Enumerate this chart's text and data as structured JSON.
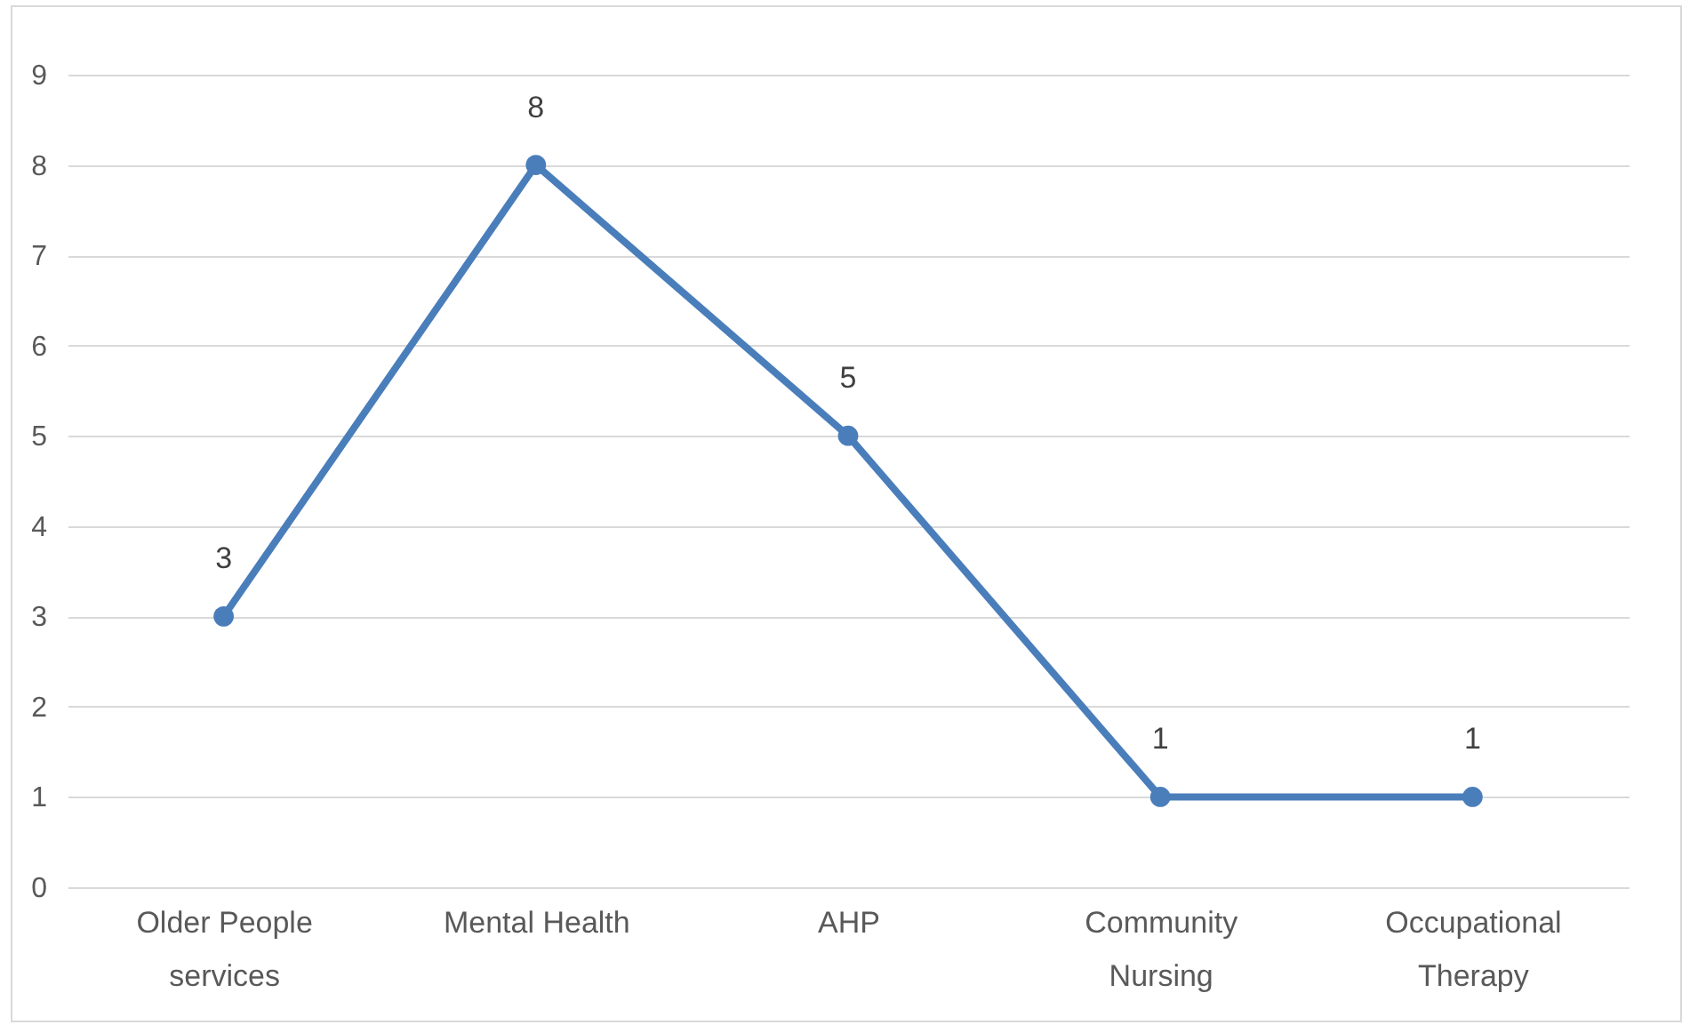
{
  "chart_data": {
    "type": "line",
    "categories": [
      "Older People services",
      "Mental Health",
      "AHP",
      "Community Nursing",
      "Occupational Therapy"
    ],
    "series": [
      {
        "color": "#4a7ebb",
        "values": [
          3,
          8,
          5,
          1,
          1
        ]
      }
    ],
    "ylim": [
      0,
      9
    ],
    "yticks": [
      0,
      1,
      2,
      3,
      4,
      5,
      6,
      7,
      8,
      9
    ],
    "grid": "y",
    "marker": "circle",
    "line_style": "solid",
    "data_labels": true
  }
}
